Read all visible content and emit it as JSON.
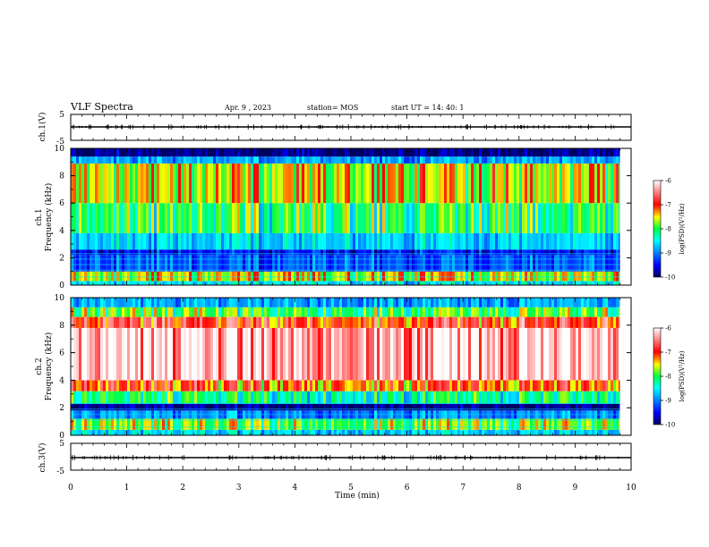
{
  "header": {
    "title": "VLF Spectra",
    "date": "Apr. 9 , 2023",
    "station": "station= MOS",
    "start": "start UT = 14: 40: 1"
  },
  "chart_data": [
    {
      "type": "line",
      "name": "ch1-waveform",
      "ylabel": "ch.1(V)",
      "ylim": [
        -5,
        5
      ],
      "yticks": [
        "5",
        "-5"
      ],
      "xlim": [
        0,
        10
      ],
      "level": 0
    },
    {
      "type": "heatmap",
      "name": "ch1-spectrogram",
      "ylabel": "ch.1\nFrequency (kHz)",
      "xlim": [
        0,
        10
      ],
      "ylim": [
        0,
        10
      ],
      "yticks": [
        "0",
        "2",
        "4",
        "6",
        "8",
        "10"
      ],
      "data_end_min": 9.8,
      "bands": [
        {
          "from": 0.0,
          "to": 0.3,
          "level": -8.6
        },
        {
          "from": 0.3,
          "to": 1.0,
          "level": -7.6
        },
        {
          "from": 1.0,
          "to": 2.2,
          "level": -9.2
        },
        {
          "from": 2.2,
          "to": 2.6,
          "level": -9.5
        },
        {
          "from": 2.6,
          "to": 3.8,
          "level": -8.7
        },
        {
          "from": 3.8,
          "to": 6.0,
          "level": -8.1
        },
        {
          "from": 6.0,
          "to": 8.9,
          "level": -7.6
        },
        {
          "from": 8.9,
          "to": 9.4,
          "level": -8.9
        },
        {
          "from": 9.4,
          "to": 10.0,
          "level": -9.9
        }
      ],
      "colorbar": {
        "label": "log(PSD)(V²/Hz)",
        "ticks": [
          "-6",
          "-7",
          "-8",
          "-9",
          "-10"
        ],
        "range": [
          -10,
          -6
        ]
      }
    },
    {
      "type": "heatmap",
      "name": "ch2-spectrogram",
      "ylabel": "ch.2\nFrequency (kHz)",
      "xlim": [
        0,
        10
      ],
      "ylim": [
        0,
        10
      ],
      "yticks": [
        "0",
        "2",
        "4",
        "6",
        "8",
        "10"
      ],
      "data_end_min": 9.8,
      "bands": [
        {
          "from": 0.0,
          "to": 0.4,
          "level": -8.7
        },
        {
          "from": 0.4,
          "to": 1.2,
          "level": -7.9
        },
        {
          "from": 1.2,
          "to": 1.8,
          "level": -9.0
        },
        {
          "from": 1.8,
          "to": 2.3,
          "level": -9.9
        },
        {
          "from": 2.3,
          "to": 3.2,
          "level": -8.3
        },
        {
          "from": 3.2,
          "to": 4.0,
          "level": -7.2
        },
        {
          "from": 4.0,
          "to": 7.8,
          "level": -6.3
        },
        {
          "from": 7.8,
          "to": 8.6,
          "level": -7.0
        },
        {
          "from": 8.6,
          "to": 9.3,
          "level": -8.0
        },
        {
          "from": 9.3,
          "to": 10.0,
          "level": -8.9
        }
      ],
      "colorbar": {
        "label": "log(PSD)(V²/Hz)",
        "ticks": [
          "-6",
          "-7",
          "-8",
          "-9",
          "-10"
        ],
        "range": [
          -10,
          -6
        ]
      }
    },
    {
      "type": "line",
      "name": "ch3-waveform",
      "ylabel": "ch.3(V)",
      "ylim": [
        -5,
        5
      ],
      "yticks": [
        "5",
        "-5"
      ],
      "xlim": [
        0,
        10
      ],
      "level": 0
    }
  ],
  "xaxis": {
    "label": "Time (min)",
    "ticks": [
      "0",
      "1",
      "2",
      "3",
      "4",
      "5",
      "6",
      "7",
      "8",
      "9",
      "10"
    ]
  },
  "colors": {
    "scale": [
      "#000080",
      "#0000ff",
      "#0090ff",
      "#00ffff",
      "#00ff60",
      "#c0ff00",
      "#ffff00",
      "#ff8000",
      "#ff0000",
      "#ffffff"
    ]
  }
}
